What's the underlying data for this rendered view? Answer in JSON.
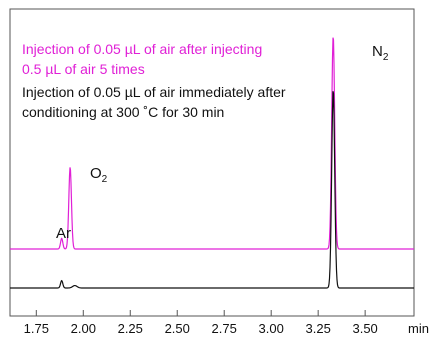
{
  "chart_data": {
    "type": "line",
    "xlabel": "min",
    "xlim": [
      1.61,
      3.76
    ],
    "x_ticks": [
      "1.75",
      "2.00",
      "2.25",
      "2.50",
      "2.75",
      "3.00",
      "3.25",
      "3.50"
    ],
    "y_ticks": [],
    "grid": false,
    "legend_position": "top-left",
    "legend": {
      "magenta_line1": "Injection of 0.05 µL of air after injecting",
      "magenta_line2": "0.5 µL of air 5 times",
      "black_line1": "Injection of 0.05 µL of air immediately after",
      "black_line2": "conditioning at 300 ˚C for 30 min"
    },
    "annotations": {
      "ar": "Ar",
      "o2_base": "O",
      "o2_sub": "2",
      "n2_base": "N",
      "n2_sub": "2"
    },
    "series": [
      {
        "color": "#e020d6",
        "baseline": 0.0,
        "peaks": [
          {
            "x": 1.885,
            "height": 0.13,
            "width": 0.006
          },
          {
            "x": 1.93,
            "height": 1.0,
            "width": 0.007
          },
          {
            "x": 3.33,
            "height": 2.6,
            "width": 0.008
          }
        ]
      },
      {
        "color": "#111111",
        "baseline": 0.0,
        "peaks": [
          {
            "x": 1.885,
            "height": 0.09,
            "width": 0.006
          },
          {
            "x": 1.955,
            "height": 0.03,
            "width": 0.012
          },
          {
            "x": 3.33,
            "height": 2.42,
            "width": 0.008
          }
        ]
      }
    ]
  },
  "colors": {
    "magenta": "#e020d6",
    "black": "#111111"
  }
}
